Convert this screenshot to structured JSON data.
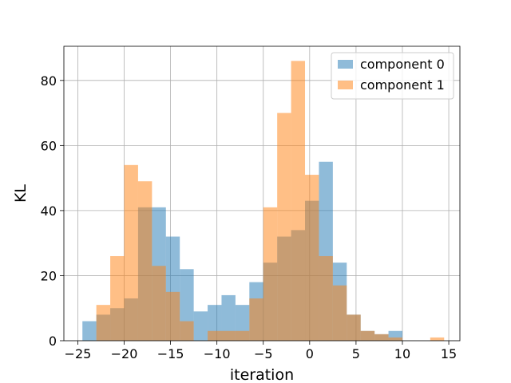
{
  "chart_data": {
    "type": "bar",
    "title": "",
    "xlabel": "iteration",
    "ylabel": "KL",
    "xlim": [
      -26.5,
      16.2
    ],
    "ylim": [
      0,
      90.5
    ],
    "xticks": [
      -25,
      -20,
      -15,
      -10,
      -5,
      0,
      5,
      10,
      15
    ],
    "yticks": [
      0,
      20,
      40,
      60,
      80
    ],
    "grid": true,
    "legend_position": "upper right",
    "series": [
      {
        "name": "component 0",
        "color": "#1f77b4",
        "alpha": 0.5,
        "bins": [
          [
            -24.5,
            -23.0,
            6
          ],
          [
            -23.0,
            -21.5,
            8
          ],
          [
            -21.5,
            -20.0,
            10
          ],
          [
            -20.0,
            -18.5,
            13
          ],
          [
            -18.5,
            -17.0,
            41
          ],
          [
            -17.0,
            -15.5,
            41
          ],
          [
            -15.5,
            -14.0,
            32
          ],
          [
            -14.0,
            -12.5,
            22
          ],
          [
            -12.5,
            -11.0,
            9
          ],
          [
            -11.0,
            -9.5,
            11
          ],
          [
            -9.5,
            -8.0,
            14
          ],
          [
            -8.0,
            -6.5,
            11
          ],
          [
            -6.5,
            -5.0,
            18
          ],
          [
            -5.0,
            -3.5,
            24
          ],
          [
            -3.5,
            -2.0,
            32
          ],
          [
            -2.0,
            -0.5,
            34
          ],
          [
            -0.5,
            1.0,
            43
          ],
          [
            1.0,
            2.5,
            55
          ],
          [
            2.5,
            4.0,
            24
          ],
          [
            4.0,
            5.5,
            8
          ],
          [
            5.5,
            7.0,
            3
          ],
          [
            7.0,
            8.5,
            2
          ],
          [
            8.5,
            10.0,
            3
          ]
        ]
      },
      {
        "name": "component 1",
        "color": "#ff7f0e",
        "alpha": 0.5,
        "bins": [
          [
            -23.0,
            -21.5,
            11
          ],
          [
            -21.5,
            -20.0,
            26
          ],
          [
            -20.0,
            -18.5,
            54
          ],
          [
            -18.5,
            -17.0,
            49
          ],
          [
            -17.0,
            -15.5,
            23
          ],
          [
            -15.5,
            -14.0,
            15
          ],
          [
            -14.0,
            -12.5,
            6
          ],
          [
            -12.5,
            -11.0,
            0
          ],
          [
            -11.0,
            -9.5,
            3
          ],
          [
            -9.5,
            -8.0,
            3
          ],
          [
            -8.0,
            -6.5,
            3
          ],
          [
            -6.5,
            -5.0,
            13
          ],
          [
            -5.0,
            -3.5,
            41
          ],
          [
            -3.5,
            -2.0,
            70
          ],
          [
            -2.0,
            -0.5,
            86
          ],
          [
            -0.5,
            1.0,
            51
          ],
          [
            1.0,
            2.5,
            26
          ],
          [
            2.5,
            4.0,
            17
          ],
          [
            4.0,
            5.5,
            8
          ],
          [
            5.5,
            7.0,
            3
          ],
          [
            7.0,
            8.5,
            2
          ],
          [
            8.5,
            10.0,
            1
          ],
          [
            10.0,
            11.5,
            0
          ],
          [
            11.5,
            13.0,
            0
          ],
          [
            13.0,
            14.5,
            1
          ]
        ]
      }
    ]
  }
}
